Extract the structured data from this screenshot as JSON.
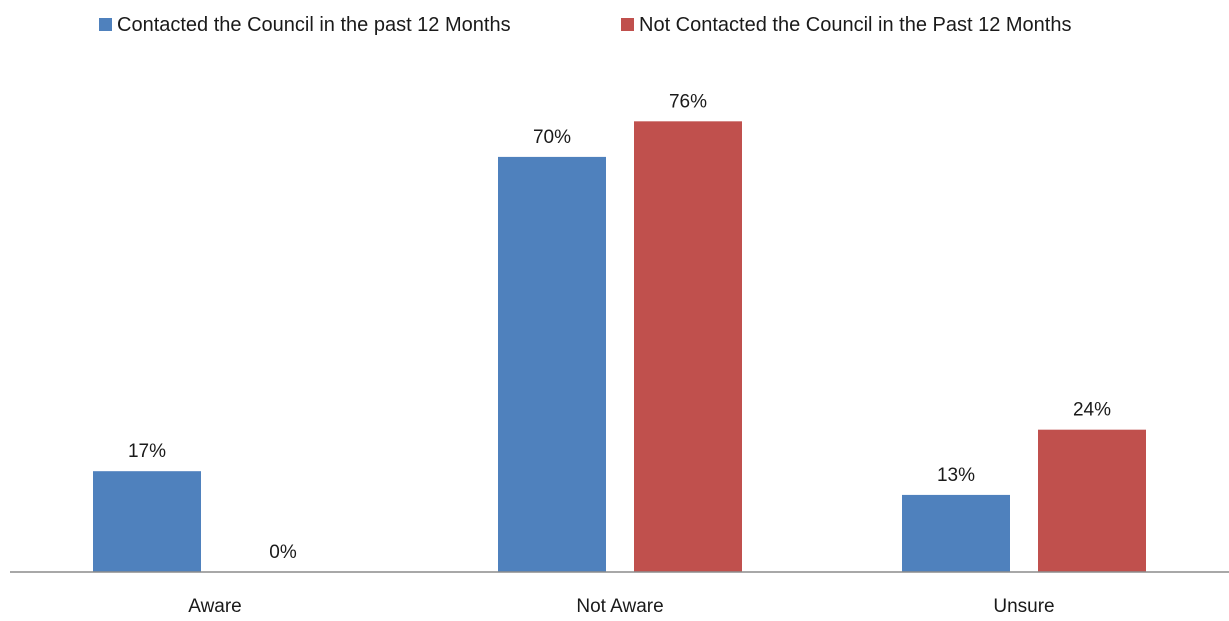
{
  "chart_data": {
    "type": "bar",
    "categories": [
      "Aware",
      "Not Aware",
      "Unsure"
    ],
    "series": [
      {
        "name": "Contacted the Council in the past 12 Months",
        "values": [
          17,
          70,
          13
        ],
        "labels": [
          "17%",
          "70%",
          "13%"
        ],
        "color": "#4F81BD"
      },
      {
        "name": "Not Contacted the Council in the Past 12 Months",
        "values": [
          0,
          76,
          24
        ],
        "labels": [
          "0%",
          "76%",
          "24%"
        ],
        "color": "#C0504D"
      }
    ],
    "title": "",
    "xlabel": "",
    "ylabel": "",
    "ylim": [
      0,
      80
    ],
    "grid": false,
    "legend": "top"
  }
}
